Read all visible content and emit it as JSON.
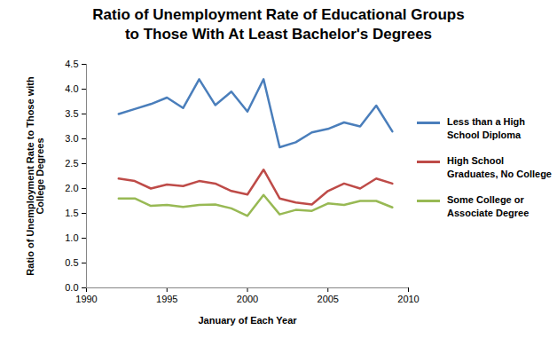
{
  "chart_data": {
    "type": "line",
    "title": "Ratio of Unemployment Rate of Educational Groups to Those With At Least Bachelor's Degrees",
    "x_label": "January of Each Year",
    "y_label": "Ratio of Unemployment Rate to Those with College Degrees",
    "x": [
      1992,
      1993,
      1994,
      1995,
      1996,
      1997,
      1998,
      1999,
      2000,
      2001,
      2002,
      2003,
      2004,
      2005,
      2006,
      2007,
      2008,
      2009
    ],
    "series": [
      {
        "name": "Less than a High School Diploma",
        "color": "#4a7ebb",
        "values": [
          3.5,
          3.6,
          3.7,
          3.83,
          3.62,
          4.2,
          3.68,
          3.95,
          3.55,
          4.2,
          2.83,
          2.93,
          3.13,
          3.2,
          3.33,
          3.25,
          3.67,
          3.15
        ]
      },
      {
        "name": "High School Graduates, No College",
        "color": "#be4b48",
        "values": [
          2.2,
          2.15,
          2.0,
          2.08,
          2.05,
          2.15,
          2.1,
          1.95,
          1.88,
          2.38,
          1.8,
          1.72,
          1.68,
          1.95,
          2.1,
          2.0,
          2.2,
          2.1
        ]
      },
      {
        "name": "Some College or Associate Degree",
        "color": "#98b954",
        "values": [
          1.8,
          1.8,
          1.65,
          1.67,
          1.63,
          1.67,
          1.68,
          1.6,
          1.45,
          1.87,
          1.48,
          1.57,
          1.55,
          1.7,
          1.67,
          1.75,
          1.75,
          1.62
        ]
      }
    ],
    "xlim": [
      1990,
      2010
    ],
    "xticks": [
      1990,
      1995,
      2000,
      2005,
      2010
    ],
    "ylim": [
      0,
      4.5
    ],
    "yticks": [
      {
        "value": 0,
        "label": "0.0"
      },
      0.5,
      {
        "value": 1,
        "label": "1.0"
      },
      1.5,
      {
        "value": 2,
        "label": "2.0"
      },
      2.5,
      {
        "value": 3,
        "label": "3.0"
      },
      3.5,
      {
        "value": 4,
        "label": "4.0"
      },
      4.5
    ],
    "grid": false,
    "legend": "right"
  }
}
